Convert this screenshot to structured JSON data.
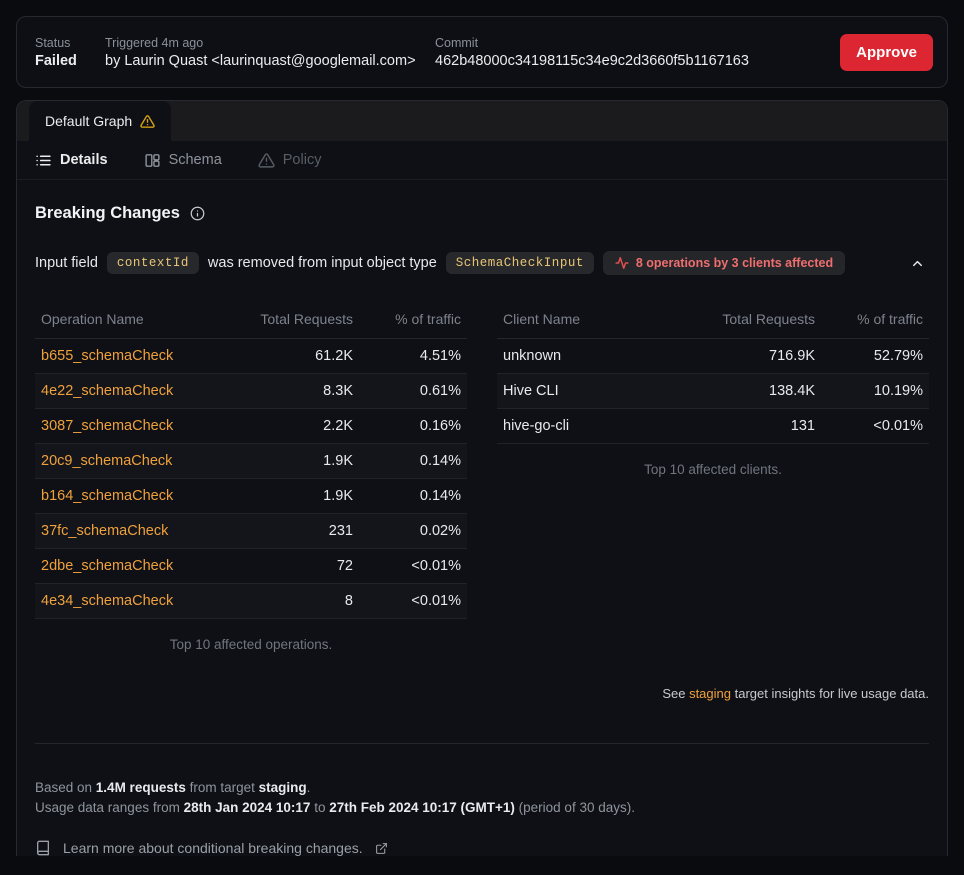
{
  "header": {
    "status_label": "Status",
    "status_value": "Failed",
    "triggered_label": "Triggered 4m ago",
    "triggered_by": "by Laurin Quast <laurinquast@googlemail.com>",
    "commit_label": "Commit",
    "commit_value": "462b48000c34198115c34e9c2d3660f5b1167163",
    "approve_label": "Approve"
  },
  "graph_tab": {
    "label": "Default Graph"
  },
  "tabs": [
    {
      "label": "Details"
    },
    {
      "label": "Schema"
    },
    {
      "label": "Policy"
    }
  ],
  "breaking": {
    "title": "Breaking Changes",
    "change": {
      "prefix": "Input field",
      "field_code": "contextId",
      "middle": "was removed from input object type",
      "type_code": "SchemaCheckInput",
      "badge": "8 operations by 3 clients affected"
    }
  },
  "operations_table": {
    "headers": [
      "Operation Name",
      "Total Requests",
      "% of traffic"
    ],
    "link_rows": true,
    "rows": [
      {
        "name": "b655_schemaCheck",
        "requests": "61.2K",
        "traffic": "4.51%"
      },
      {
        "name": "4e22_schemaCheck",
        "requests": "8.3K",
        "traffic": "0.61%"
      },
      {
        "name": "3087_schemaCheck",
        "requests": "2.2K",
        "traffic": "0.16%"
      },
      {
        "name": "20c9_schemaCheck",
        "requests": "1.9K",
        "traffic": "0.14%"
      },
      {
        "name": "b164_schemaCheck",
        "requests": "1.9K",
        "traffic": "0.14%"
      },
      {
        "name": "37fc_schemaCheck",
        "requests": "231",
        "traffic": "0.02%"
      },
      {
        "name": "2dbe_schemaCheck",
        "requests": "72",
        "traffic": "<0.01%"
      },
      {
        "name": "4e34_schemaCheck",
        "requests": "8",
        "traffic": "<0.01%"
      }
    ],
    "caption": "Top 10 affected operations."
  },
  "clients_table": {
    "headers": [
      "Client Name",
      "Total Requests",
      "% of traffic"
    ],
    "link_rows": false,
    "rows": [
      {
        "name": "unknown",
        "requests": "716.9K",
        "traffic": "52.79%"
      },
      {
        "name": "Hive CLI",
        "requests": "138.4K",
        "traffic": "10.19%"
      },
      {
        "name": "hive-go-cli",
        "requests": "131",
        "traffic": "<0.01%"
      }
    ],
    "caption": "Top 10 affected clients."
  },
  "insights_note": {
    "prefix": "See ",
    "link": "staging",
    "suffix": " target insights for live usage data."
  },
  "footer": {
    "line1": [
      {
        "t": "Based on "
      },
      {
        "t": "1.4M requests",
        "b": true
      },
      {
        "t": " from target "
      },
      {
        "t": "staging",
        "b": true
      },
      {
        "t": "."
      }
    ],
    "line2": [
      {
        "t": "Usage data ranges from "
      },
      {
        "t": "28th Jan 2024 10:17",
        "b": true
      },
      {
        "t": " to "
      },
      {
        "t": "27th Feb 2024 10:17 (GMT+1)",
        "b": true
      },
      {
        "t": " (period of 30 days)."
      }
    ],
    "learn_more": "Learn more about conditional breaking changes."
  },
  "colors": {
    "accent_orange": "#f0a13c",
    "badge_red": "#ef6e6e",
    "approve_red": "#dc2631",
    "warn_amber": "#d9a514",
    "code_amber": "#e8c576"
  }
}
